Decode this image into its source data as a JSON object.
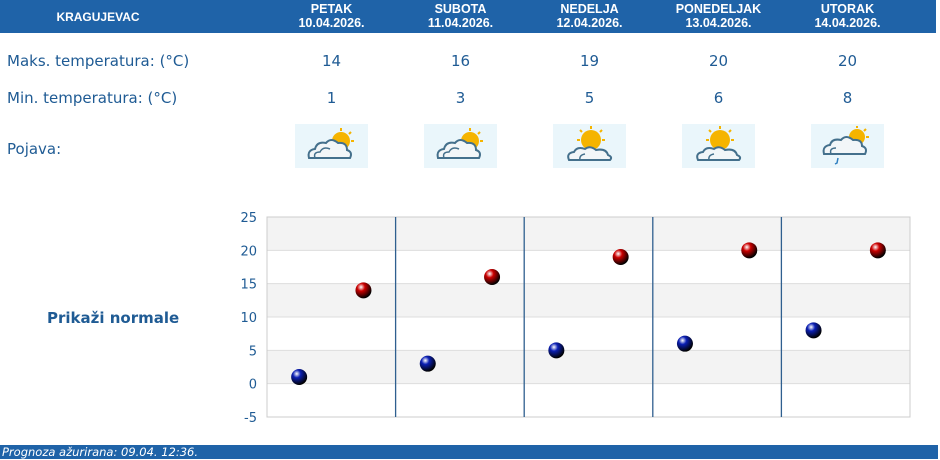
{
  "header": {
    "city": "KRAGUJEVAC",
    "days": [
      {
        "name": "PETAK",
        "date": "10.04.2026."
      },
      {
        "name": "SUBOTA",
        "date": "11.04.2026."
      },
      {
        "name": "NEDELJA",
        "date": "12.04.2026."
      },
      {
        "name": "PONEDELJAK",
        "date": "13.04.2026."
      },
      {
        "name": "UTORAK",
        "date": "14.04.2026."
      }
    ]
  },
  "rows": {
    "max_label": "Maks. temperatura: (°C)",
    "min_label": "Min. temperatura: (°C)",
    "phenomenon_label": "Pojava:",
    "max_values": [
      "14",
      "16",
      "19",
      "20",
      "20"
    ],
    "min_values": [
      "1",
      "3",
      "5",
      "6",
      "8"
    ],
    "icons": [
      "partly-cloudy-icon",
      "partly-cloudy-icon",
      "mostly-sunny-icon",
      "mostly-sunny-icon",
      "cloudy-light-rain-icon"
    ]
  },
  "normals_link": "Prikaži normale",
  "chart_data": {
    "type": "scatter",
    "ylim": [
      -5,
      25
    ],
    "y_ticks": [
      "25",
      "20",
      "15",
      "10",
      "5",
      "0",
      "-5"
    ],
    "series": [
      {
        "values": [
          1,
          3,
          5,
          6,
          8
        ],
        "color": "#0b1fb4"
      },
      {
        "values": [
          14,
          16,
          19,
          20,
          20
        ],
        "color": "#cc0000"
      }
    ],
    "grid": true
  },
  "footer": "Prognoza ažurirana:  09.04. 12:36."
}
